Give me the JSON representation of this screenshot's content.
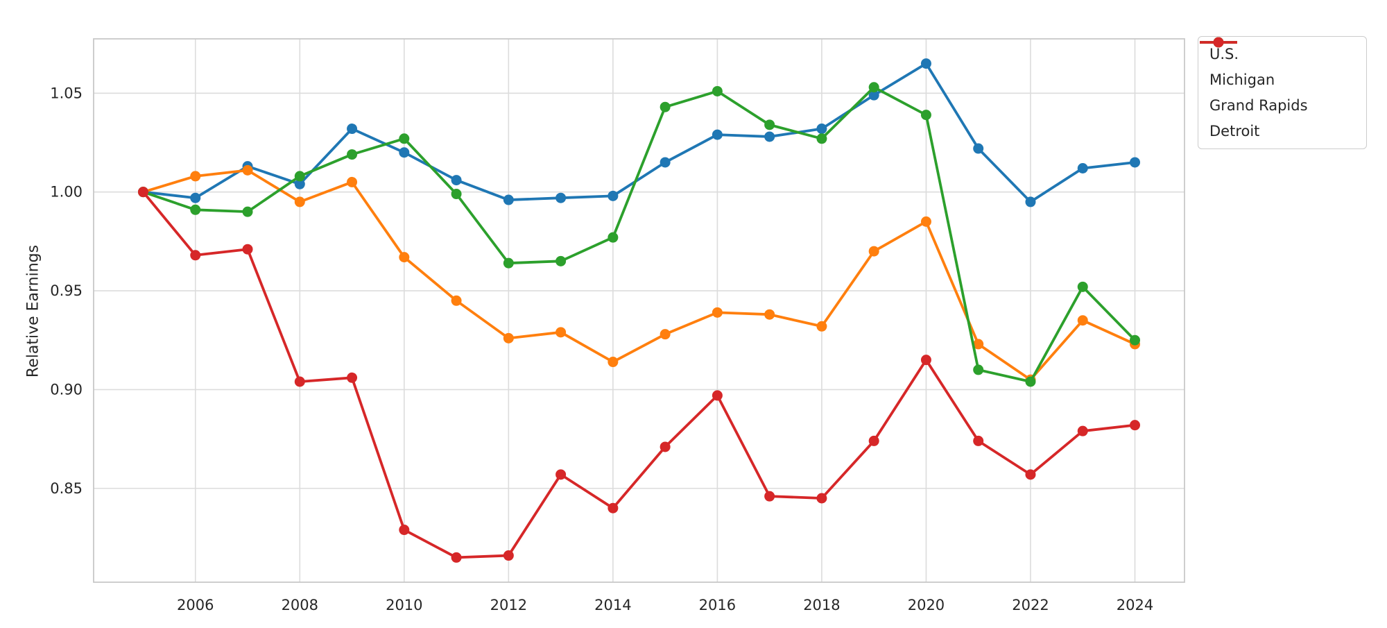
{
  "figure": {
    "background": "#ffffff",
    "grid_color": "#dcdcdc",
    "spine_color": "#c8c8c8",
    "text_color": "#262626"
  },
  "chart_data": {
    "type": "line",
    "title": "",
    "xlabel": "",
    "ylabel": "Relative Earnings",
    "grid": true,
    "legend_position": "upper right, outside plot",
    "x": [
      2005,
      2006,
      2007,
      2008,
      2009,
      2010,
      2011,
      2012,
      2013,
      2014,
      2015,
      2016,
      2017,
      2018,
      2019,
      2020,
      2021,
      2022,
      2023,
      2024
    ],
    "x_ticks": [
      2006,
      2008,
      2010,
      2012,
      2014,
      2016,
      2018,
      2020,
      2022,
      2024
    ],
    "x_tick_labels": [
      "2006",
      "2008",
      "2010",
      "2012",
      "2014",
      "2016",
      "2018",
      "2020",
      "2022",
      "2024"
    ],
    "y_ticks": [
      0.85,
      0.9,
      0.95,
      1.0,
      1.05
    ],
    "y_tick_labels": [
      "0.85",
      "0.90",
      "0.95",
      "1.00",
      "1.05"
    ],
    "xlim": [
      2004.05,
      2024.95
    ],
    "ylim": [
      0.8025,
      1.0775
    ],
    "marker": "circle",
    "series": [
      {
        "name": "U.S.",
        "color": "#1f77b4",
        "values": [
          1.0,
          0.997,
          1.013,
          1.004,
          1.032,
          1.02,
          1.006,
          0.996,
          0.997,
          0.998,
          1.015,
          1.029,
          1.028,
          1.032,
          1.049,
          1.065,
          1.022,
          0.995,
          1.012,
          1.015
        ]
      },
      {
        "name": "Michigan",
        "color": "#ff7f0e",
        "values": [
          1.0,
          1.008,
          1.011,
          0.995,
          1.005,
          0.967,
          0.945,
          0.926,
          0.929,
          0.914,
          0.928,
          0.939,
          0.938,
          0.932,
          0.97,
          0.985,
          0.923,
          0.905,
          0.935,
          0.923
        ]
      },
      {
        "name": "Grand Rapids",
        "color": "#2ca02c",
        "values": [
          1.0,
          0.991,
          0.99,
          1.008,
          1.019,
          1.027,
          0.999,
          0.964,
          0.965,
          0.977,
          1.043,
          1.051,
          1.034,
          1.027,
          1.053,
          1.039,
          0.91,
          0.904,
          0.952,
          0.925
        ]
      },
      {
        "name": "Detroit",
        "color": "#d62728",
        "values": [
          1.0,
          0.968,
          0.971,
          0.904,
          0.906,
          0.829,
          0.815,
          0.816,
          0.857,
          0.84,
          0.871,
          0.897,
          0.846,
          0.845,
          0.874,
          0.915,
          0.874,
          0.857,
          0.879,
          0.882
        ]
      }
    ]
  }
}
